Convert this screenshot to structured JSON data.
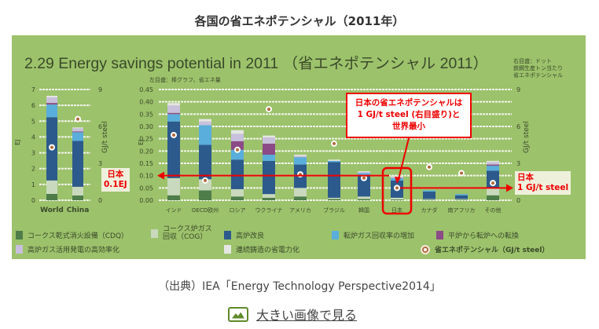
{
  "page": {
    "title": "各国の省エネポテンシャル（2011年）",
    "caption": "（出典）IEA「Energy Technology Perspective2014」",
    "link_label": "大きい画像で見る",
    "link_icon": "image-icon"
  },
  "chart_data": {
    "type": "bar",
    "title": "2.29 Energy savings potential in 2011 （省エネポテンシャル 2011）",
    "left_note": "左目盛：棒グラフ、省エネ量",
    "right_note": [
      "右目盛：ドット",
      "鉄鋼生産トン当たり",
      "省エネポテンシャル"
    ],
    "ylabel": "EJ",
    "y2label": "GJ/t steel",
    "panels": [
      {
        "name": "world-china",
        "ylim": [
          0,
          7
        ],
        "y2lim": [
          0,
          9
        ],
        "yticks": [
          "0",
          "1",
          "2",
          "3",
          "4",
          "5",
          "6",
          "7"
        ],
        "y2ticks": [
          "0",
          "3",
          "6",
          "9"
        ],
        "categories": [
          "World",
          "China"
        ],
        "stacks": [
          [
            0.4,
            0.85,
            4.0,
            0.8,
            0.1,
            0.35,
            0.1
          ],
          [
            0.3,
            0.55,
            2.9,
            0.55,
            0.05,
            0.2,
            0.05
          ]
        ],
        "dots": [
          4.3,
          6.6
        ]
      },
      {
        "name": "countries",
        "ylim": [
          0,
          0.45
        ],
        "y2lim": [
          0,
          9
        ],
        "yticks": [
          "0.00",
          "0.05",
          "0.10",
          "0.15",
          "0.20",
          "0.25",
          "0.30",
          "0.35",
          "0.40",
          "0.45"
        ],
        "y2ticks": [
          "0",
          "3",
          "6",
          "9"
        ],
        "categories": [
          "インド",
          "OECD欧州",
          "ロシア",
          "ウクライナ",
          "アメリカ",
          "ブラジル",
          "韓国",
          "日本",
          "カナダ",
          "南アフリカ",
          "その他"
        ],
        "stacks": [
          [
            0.02,
            0.07,
            0.23,
            0.03,
            0.005,
            0.03,
            0.01
          ],
          [
            0.04,
            0.045,
            0.14,
            0.08,
            0,
            0.015,
            0.01
          ],
          [
            0.015,
            0.03,
            0.12,
            0.04,
            0.035,
            0.03,
            0.015
          ],
          [
            0.01,
            0.015,
            0.135,
            0.025,
            0.045,
            0.025,
            0.008
          ],
          [
            0.015,
            0.035,
            0.095,
            0.03,
            0,
            0.005,
            0.005
          ],
          [
            0.005,
            0.005,
            0.145,
            0.005,
            0,
            0,
            0.005
          ],
          [
            0.005,
            0.01,
            0.085,
            0.01,
            0,
            0.005,
            0.003
          ],
          [
            0.003,
            0.007,
            0.07,
            0.01,
            0,
            0.005,
            0.005
          ],
          [
            0.002,
            0.003,
            0.03,
            0.005,
            0,
            0,
            0
          ],
          [
            0.002,
            0.003,
            0.015,
            0.005,
            0,
            0,
            0
          ],
          [
            0.02,
            0.03,
            0.07,
            0.02,
            0.005,
            0.01,
            0.005
          ]
        ],
        "dots": [
          5.3,
          1.6,
          4.1,
          7.4,
          2.1,
          4.6,
          1.8,
          1.0,
          2.7,
          2.2,
          1.4
        ]
      }
    ],
    "series": [
      {
        "name": "コークス乾式消火設備（CDQ）",
        "color": "#4e7d4a"
      },
      {
        "name": "コークス炉ガス回収（COG）",
        "color": "#c9d9bd"
      },
      {
        "name": "高炉改良",
        "color": "#2c5a8c"
      },
      {
        "name": "転炉ガス回収率の増加",
        "color": "#5aaedc"
      },
      {
        "name": "平炉から転炉への転換",
        "color": "#8c4a86"
      },
      {
        "name": "高炉ガス活用発電の高効率化",
        "color": "#c8c0dc"
      },
      {
        "name": "連続鋳造の省電力化",
        "color": "#e4e6e2"
      }
    ],
    "dot_legend": "省エネポテンシャル（GJ/t steel）",
    "annotations": {
      "callout": [
        "日本の省エネポテンシャルは",
        "1 GJ/t steel (右目盛り)と",
        "世界最小"
      ],
      "left_label": [
        "日本",
        "0.1EJ"
      ],
      "right_label": [
        "日本",
        "1 GJ/t steel"
      ]
    }
  }
}
